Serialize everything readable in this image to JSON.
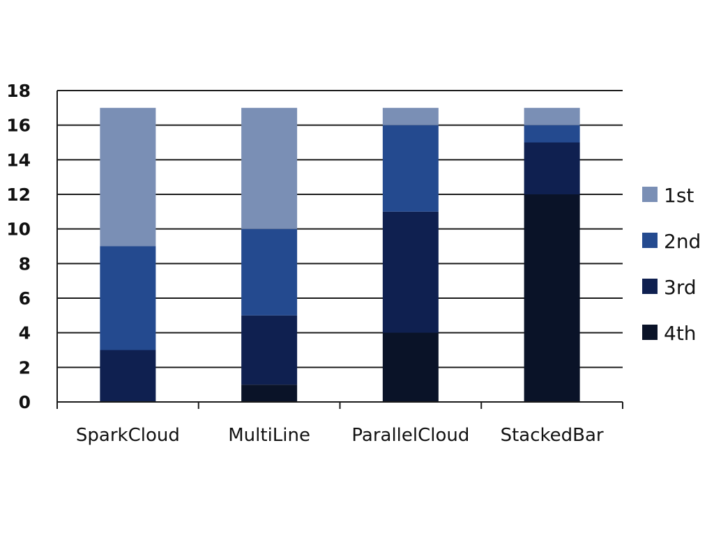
{
  "chart_data": {
    "type": "bar",
    "stacked": true,
    "categories": [
      "SparkCloud",
      "MultiLine",
      "ParallelCloud",
      "StackedBar"
    ],
    "series": [
      {
        "name": "4th",
        "values": [
          0,
          1,
          4,
          12
        ],
        "color": "#0a1328"
      },
      {
        "name": "3rd",
        "values": [
          3,
          4,
          7,
          3
        ],
        "color": "#0f2050"
      },
      {
        "name": "2nd",
        "values": [
          6,
          5,
          5,
          1
        ],
        "color": "#244a8f"
      },
      {
        "name": "1st",
        "values": [
          8,
          7,
          1,
          1
        ],
        "color": "#7a8fb5"
      }
    ],
    "ylim": [
      0,
      18
    ],
    "yticks": [
      "0",
      "2",
      "4",
      "6",
      "8",
      "10",
      "12",
      "14",
      "16",
      "18"
    ],
    "grid": true,
    "legend": {
      "position": "right",
      "order": [
        "1st",
        "2nd",
        "3rd",
        "4th"
      ]
    }
  }
}
